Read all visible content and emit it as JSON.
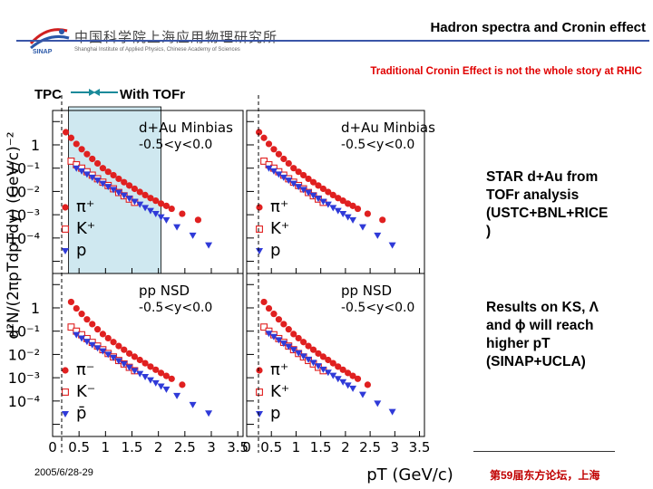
{
  "header": {
    "title": "Hadron spectra and Cronin effect",
    "logo_cn": "中国科学院上海应用物理研究所",
    "logo_en": "Shanghai Institute of Applied Physics, Chinese Academy of Sciences",
    "logo_abbr": "SINAP",
    "subtitle": "Traditional Cronin Effect is not the whole story at RHIC"
  },
  "labels": {
    "tpc": "TPC",
    "tofr": "With TOFr"
  },
  "notes": {
    "star": "STAR d+Au from\nTOFr analysis\n(USTC+BNL+RICE\n)",
    "results": "Results on KS, Λ\nand ϕ will reach\nhigher pT\n(SINAP+UCLA)"
  },
  "footer": {
    "date": "2005/6/28-29",
    "forum": "第59届东方论坛，上海"
  },
  "colors": {
    "pion": "#e02020",
    "kaon": "#e02020",
    "proton": "#2f3ad8",
    "tofr_shade": "#cfe8f0",
    "accent": "#3a56a8",
    "subtitle": "#e00000"
  },
  "chart_data": {
    "type": "scatter",
    "xlabel": "pT (GeV/c)",
    "ylabel": "d²N/(2πpTdpTdy) (GeV/c)⁻²",
    "log_y": true,
    "ylim": [
      3e-06,
      30
    ],
    "x_tick_labels": [
      "0",
      "0.5",
      "1",
      "1.5",
      "2",
      "2.5",
      "3",
      "3.5"
    ],
    "y_tick_labels": [
      "1",
      "10⁻¹",
      "10⁻²",
      "10⁻³",
      "10⁻⁴"
    ],
    "panels": [
      {
        "id": "top-left",
        "xlim": [
          0,
          3.6
        ],
        "labels": [
          "d+Au Minbias",
          "-0.5<y<0.0"
        ],
        "legend": [
          "π⁺",
          "K⁺",
          "p"
        ],
        "tofr_shaded": true,
        "series": [
          {
            "name": "π⁺",
            "marker": "filled-circle",
            "color": "#e02020",
            "x": [
              0.25,
              0.35,
              0.45,
              0.55,
              0.65,
              0.75,
              0.85,
              0.95,
              1.05,
              1.15,
              1.25,
              1.35,
              1.45,
              1.55,
              1.65,
              1.75,
              1.85,
              1.95,
              2.05,
              2.15,
              2.25,
              2.45,
              2.75
            ],
            "y": [
              3.5,
              2.0,
              1.1,
              0.65,
              0.4,
              0.25,
              0.16,
              0.1,
              0.07,
              0.05,
              0.035,
              0.025,
              0.018,
              0.013,
              0.0095,
              0.007,
              0.0052,
              0.004,
              0.003,
              0.0024,
              0.0018,
              0.0011,
              0.0006
            ]
          },
          {
            "name": "K⁺",
            "marker": "open-square",
            "color": "#e02020",
            "x": [
              0.35,
              0.45,
              0.55,
              0.65,
              0.75,
              0.85,
              0.95,
              1.05,
              1.15,
              1.25,
              1.35,
              1.45,
              1.55
            ],
            "y": [
              0.2,
              0.14,
              0.1,
              0.07,
              0.05,
              0.035,
              0.025,
              0.018,
              0.013,
              0.009,
              0.0065,
              0.0047,
              0.0034
            ]
          },
          {
            "name": "p",
            "marker": "filled-triangle-down",
            "color": "#2f3ad8",
            "x": [
              0.45,
              0.55,
              0.65,
              0.75,
              0.85,
              0.95,
              1.05,
              1.15,
              1.25,
              1.35,
              1.45,
              1.55,
              1.65,
              1.75,
              1.85,
              1.95,
              2.05,
              2.15,
              2.35,
              2.65,
              2.95
            ],
            "y": [
              0.1,
              0.075,
              0.055,
              0.04,
              0.03,
              0.022,
              0.016,
              0.012,
              0.009,
              0.0068,
              0.005,
              0.0037,
              0.0028,
              0.002,
              0.0015,
              0.0011,
              0.0008,
              0.0006,
              0.0003,
              0.00013,
              5e-05
            ]
          }
        ]
      },
      {
        "id": "top-right",
        "xlim": [
          0,
          3.6
        ],
        "labels": [
          "d+Au Minbias",
          "-0.5<y<0.0"
        ],
        "legend": [
          "π⁺",
          "K⁺",
          "p"
        ],
        "tofr_shaded": false,
        "series": [
          {
            "name": "π⁺",
            "marker": "filled-circle",
            "color": "#e02020",
            "x": [
              0.25,
              0.35,
              0.45,
              0.55,
              0.65,
              0.75,
              0.85,
              0.95,
              1.05,
              1.15,
              1.25,
              1.35,
              1.45,
              1.55,
              1.65,
              1.75,
              1.85,
              1.95,
              2.05,
              2.15,
              2.25,
              2.45,
              2.75
            ],
            "y": [
              3.5,
              2.0,
              1.1,
              0.65,
              0.4,
              0.25,
              0.16,
              0.1,
              0.07,
              0.05,
              0.035,
              0.025,
              0.018,
              0.013,
              0.0095,
              0.007,
              0.0052,
              0.004,
              0.003,
              0.0024,
              0.0018,
              0.0011,
              0.0006
            ]
          },
          {
            "name": "K⁺",
            "marker": "open-square",
            "color": "#e02020",
            "x": [
              0.35,
              0.45,
              0.55,
              0.65,
              0.75,
              0.85,
              0.95,
              1.05,
              1.15,
              1.25,
              1.35,
              1.45,
              1.55
            ],
            "y": [
              0.2,
              0.14,
              0.1,
              0.07,
              0.05,
              0.035,
              0.025,
              0.018,
              0.013,
              0.009,
              0.0065,
              0.0047,
              0.0034
            ]
          },
          {
            "name": "p",
            "marker": "filled-triangle-down",
            "color": "#2f3ad8",
            "x": [
              0.45,
              0.55,
              0.65,
              0.75,
              0.85,
              0.95,
              1.05,
              1.15,
              1.25,
              1.35,
              1.45,
              1.55,
              1.65,
              1.75,
              1.85,
              1.95,
              2.05,
              2.15,
              2.35,
              2.65,
              2.95
            ],
            "y": [
              0.1,
              0.075,
              0.055,
              0.04,
              0.03,
              0.022,
              0.016,
              0.012,
              0.009,
              0.0068,
              0.005,
              0.0037,
              0.0028,
              0.002,
              0.0015,
              0.0011,
              0.0008,
              0.0006,
              0.0003,
              0.00013,
              5e-05
            ]
          }
        ]
      },
      {
        "id": "bottom-left",
        "xlim": [
          0,
          3.6
        ],
        "labels": [
          "pp NSD",
          "-0.5<y<0.0"
        ],
        "legend": [
          "π⁻",
          "K⁻",
          "p̄"
        ],
        "tofr_shaded": false,
        "series": [
          {
            "name": "π⁻",
            "marker": "filled-circle",
            "color": "#e02020",
            "x": [
              0.35,
              0.45,
              0.55,
              0.65,
              0.75,
              0.85,
              0.95,
              1.05,
              1.15,
              1.25,
              1.35,
              1.45,
              1.55,
              1.65,
              1.75,
              1.85,
              1.95,
              2.05,
              2.15,
              2.25,
              2.45
            ],
            "y": [
              1.8,
              0.95,
              0.55,
              0.32,
              0.2,
              0.12,
              0.075,
              0.05,
              0.034,
              0.023,
              0.016,
              0.011,
              0.008,
              0.0058,
              0.0042,
              0.003,
              0.0022,
              0.0016,
              0.0012,
              0.0009,
              0.0005
            ]
          },
          {
            "name": "K⁻",
            "marker": "open-square",
            "color": "#e02020",
            "x": [
              0.35,
              0.45,
              0.55,
              0.65,
              0.75,
              0.85,
              0.95,
              1.05,
              1.15,
              1.25,
              1.35,
              1.45,
              1.55
            ],
            "y": [
              0.15,
              0.1,
              0.07,
              0.048,
              0.033,
              0.023,
              0.016,
              0.011,
              0.0078,
              0.0055,
              0.0039,
              0.0028,
              0.002
            ]
          },
          {
            "name": "p̄",
            "marker": "filled-triangle-down",
            "color": "#2f3ad8",
            "x": [
              0.45,
              0.55,
              0.65,
              0.75,
              0.85,
              0.95,
              1.05,
              1.15,
              1.25,
              1.35,
              1.45,
              1.55,
              1.65,
              1.75,
              1.85,
              1.95,
              2.05,
              2.15,
              2.35,
              2.65,
              2.95
            ],
            "y": [
              0.07,
              0.05,
              0.036,
              0.026,
              0.019,
              0.014,
              0.01,
              0.0073,
              0.0053,
              0.0039,
              0.0028,
              0.002,
              0.0015,
              0.0011,
              0.0008,
              0.0006,
              0.00043,
              0.00032,
              0.00017,
              7e-05,
              3e-05
            ]
          }
        ]
      },
      {
        "id": "bottom-right",
        "xlim": [
          0,
          3.6
        ],
        "labels": [
          "pp NSD",
          "-0.5<y<0.0"
        ],
        "legend": [
          "π⁺",
          "K⁺",
          "p"
        ],
        "tofr_shaded": false,
        "series": [
          {
            "name": "π⁺",
            "marker": "filled-circle",
            "color": "#e02020",
            "x": [
              0.35,
              0.45,
              0.55,
              0.65,
              0.75,
              0.85,
              0.95,
              1.05,
              1.15,
              1.25,
              1.35,
              1.45,
              1.55,
              1.65,
              1.75,
              1.85,
              1.95,
              2.05,
              2.15,
              2.25,
              2.45
            ],
            "y": [
              1.8,
              0.95,
              0.55,
              0.32,
              0.2,
              0.12,
              0.075,
              0.05,
              0.034,
              0.023,
              0.016,
              0.011,
              0.008,
              0.0058,
              0.0042,
              0.003,
              0.0022,
              0.0016,
              0.0012,
              0.0009,
              0.0005
            ]
          },
          {
            "name": "K⁺",
            "marker": "open-square",
            "color": "#e02020",
            "x": [
              0.35,
              0.45,
              0.55,
              0.65,
              0.75,
              0.85,
              0.95,
              1.05,
              1.15,
              1.25,
              1.35,
              1.45,
              1.55
            ],
            "y": [
              0.15,
              0.1,
              0.07,
              0.048,
              0.033,
              0.023,
              0.016,
              0.011,
              0.0078,
              0.0055,
              0.0039,
              0.0028,
              0.002
            ]
          },
          {
            "name": "p",
            "marker": "filled-triangle-down",
            "color": "#2f3ad8",
            "x": [
              0.45,
              0.55,
              0.65,
              0.75,
              0.85,
              0.95,
              1.05,
              1.15,
              1.25,
              1.35,
              1.45,
              1.55,
              1.65,
              1.75,
              1.85,
              1.95,
              2.05,
              2.15,
              2.35,
              2.65,
              2.95
            ],
            "y": [
              0.08,
              0.058,
              0.042,
              0.03,
              0.022,
              0.016,
              0.0115,
              0.0084,
              0.0061,
              0.0045,
              0.0032,
              0.0023,
              0.0017,
              0.00125,
              0.0009,
              0.00066,
              0.00048,
              0.00035,
              0.00019,
              8e-05,
              3.5e-05
            ]
          }
        ]
      }
    ]
  }
}
